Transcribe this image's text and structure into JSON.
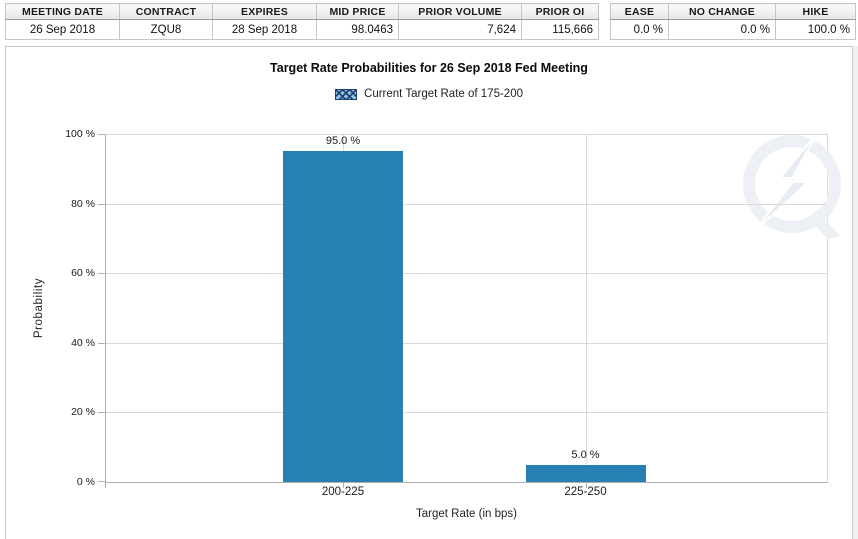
{
  "contract_table": {
    "headers": [
      "MEETING DATE",
      "CONTRACT",
      "EXPIRES",
      "MID PRICE",
      "PRIOR VOLUME",
      "PRIOR OI"
    ],
    "row": [
      "26 Sep 2018",
      "ZQU8",
      "28 Sep 2018",
      "98.0463",
      "7,624",
      "115,666"
    ]
  },
  "action_table": {
    "headers": [
      "EASE",
      "NO CHANGE",
      "HIKE"
    ],
    "row": [
      "0.0 %",
      "0.0 %",
      "100.0 %"
    ]
  },
  "chart_data": {
    "type": "bar",
    "title": "Target Rate Probabilities for 26 Sep 2018 Fed Meeting",
    "legend_label": "Current Target Rate of 175-200",
    "legend_position": "top-center",
    "categories": [
      "200-225",
      "225-250"
    ],
    "values": [
      95.0,
      5.0
    ],
    "value_labels": [
      "95.0 %",
      "5.0 %"
    ],
    "xlabel": "Target Rate (in bps)",
    "ylabel": "Probability",
    "ylim": [
      0,
      100
    ],
    "ytick_labels": [
      "100 %",
      "80 %",
      "60 %",
      "40 %",
      "20 %",
      "0 %"
    ],
    "grid": true,
    "bar_color": "#2580b4"
  },
  "icons": {
    "legend_swatch": "blue-crosshatch-swatch",
    "watermark": "quikstrike-lightning-q-logo"
  },
  "colors": {
    "bar": "#2580b4",
    "gridline": "#d9d9d9",
    "axis": "#b0b0b0",
    "legend_border": "#1d3e6e",
    "legend_fill": "#8fc3e0",
    "watermark_gray": "#edf0f5"
  }
}
